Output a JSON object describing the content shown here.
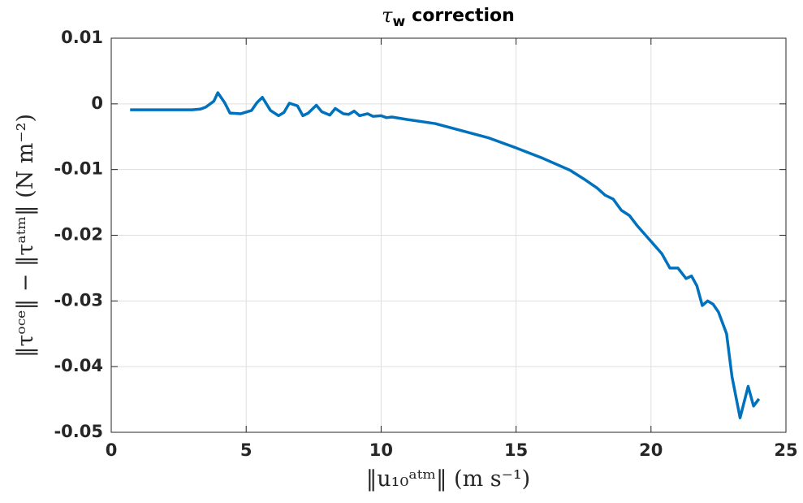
{
  "chart_data": {
    "type": "line",
    "title_symbol": "τ",
    "title_subscript": "w",
    "title_rest": "correction",
    "xlabel": "‖u₁₀ᵃᵗᵐ‖ (m s⁻¹)",
    "ylabel": "‖τᵒᶜᵉ‖ − ‖τᵃᵗᵐ‖ (N m⁻²)",
    "color": "#0072bd",
    "x": [
      0.7,
      1.5,
      2.5,
      3.0,
      3.3,
      3.5,
      3.8,
      3.95,
      4.2,
      4.4,
      4.8,
      5.2,
      5.4,
      5.6,
      5.9,
      6.2,
      6.4,
      6.6,
      6.9,
      7.1,
      7.3,
      7.6,
      7.8,
      8.1,
      8.3,
      8.6,
      8.8,
      9.0,
      9.2,
      9.5,
      9.7,
      10.0,
      10.2,
      10.4,
      11.0,
      12.0,
      13.0,
      14.0,
      15.0,
      16.0,
      17.0,
      17.5,
      18.0,
      18.3,
      18.6,
      18.9,
      19.2,
      19.5,
      19.8,
      20.1,
      20.4,
      20.7,
      21.0,
      21.3,
      21.5,
      21.7,
      21.9,
      22.1,
      22.3,
      22.5,
      22.8,
      23.0,
      23.3,
      23.6,
      23.8,
      24.0
    ],
    "values": [
      -0.0009,
      -0.0009,
      -0.0009,
      -0.0009,
      -0.0008,
      -0.0005,
      0.0004,
      0.0017,
      0.0002,
      -0.0014,
      -0.0015,
      -0.001,
      0.0002,
      0.001,
      -0.001,
      -0.0018,
      -0.0013,
      0.0001,
      -0.0003,
      -0.0018,
      -0.0014,
      -0.0002,
      -0.0012,
      -0.0017,
      -0.0007,
      -0.0015,
      -0.0016,
      -0.0011,
      -0.0018,
      -0.0015,
      -0.0019,
      -0.0018,
      -0.0021,
      -0.002,
      -0.0024,
      -0.003,
      -0.0041,
      -0.0052,
      -0.0067,
      -0.0083,
      -0.0101,
      -0.0114,
      -0.0128,
      -0.0139,
      -0.0145,
      -0.0162,
      -0.017,
      -0.0186,
      -0.02,
      -0.0214,
      -0.0228,
      -0.025,
      -0.025,
      -0.0266,
      -0.0262,
      -0.0277,
      -0.0307,
      -0.03,
      -0.0305,
      -0.0317,
      -0.035,
      -0.0415,
      -0.0478,
      -0.043,
      -0.046,
      -0.0449
    ],
    "xlim": [
      0,
      25
    ],
    "xticks": [
      0,
      5,
      10,
      15,
      20,
      25
    ],
    "ylim": [
      -0.05,
      0.01
    ],
    "yticks": [
      -0.05,
      -0.04,
      -0.03,
      -0.02,
      -0.01,
      0,
      0.01
    ],
    "grid": true
  }
}
